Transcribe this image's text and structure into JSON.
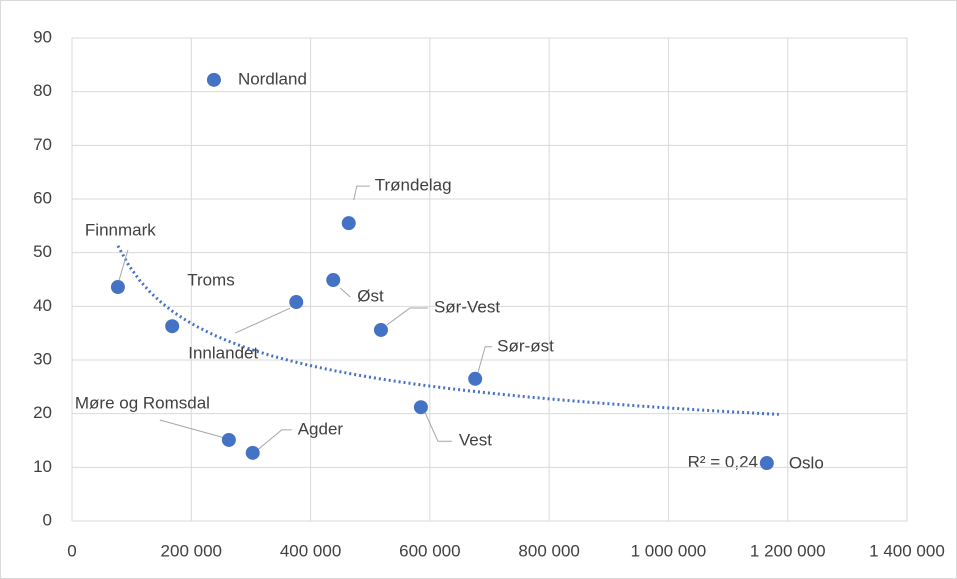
{
  "chart_data": {
    "type": "scatter",
    "point_labels": [
      "Nordland",
      "Trøndelag",
      "Finnmark",
      "Troms",
      "Innlandet",
      "Øst",
      "Sør-Vest",
      "Sør-øst",
      "Vest",
      "Møre og Romsdal",
      "Agder",
      "Oslo"
    ],
    "x": [
      238000,
      464000,
      77000,
      168000,
      376000,
      438000,
      518000,
      676000,
      585000,
      263000,
      303000,
      1165000
    ],
    "values": [
      82.2,
      55.5,
      43.6,
      36.3,
      40.8,
      44.9,
      35.6,
      26.5,
      21.2,
      15.1,
      12.7,
      10.8
    ],
    "color": "#4472c4",
    "trendline": "power",
    "annotation": "R² = 0,24",
    "xlim": [
      0,
      1400000
    ],
    "xticks": [
      0,
      {
        "value": 200000,
        "label": "200 000"
      },
      {
        "value": 400000,
        "label": "400 000"
      },
      {
        "value": 600000,
        "label": "600 000"
      },
      {
        "value": 800000,
        "label": "800 000"
      },
      {
        "value": 1000000,
        "label": "1 000 000"
      },
      {
        "value": 1200000,
        "label": "1 200 000"
      },
      {
        "value": 1400000,
        "label": "1 400 000"
      }
    ],
    "ylim": [
      0,
      90
    ],
    "yticks": [
      0,
      10,
      20,
      30,
      40,
      50,
      60,
      70,
      80,
      90
    ],
    "grid": true
  }
}
